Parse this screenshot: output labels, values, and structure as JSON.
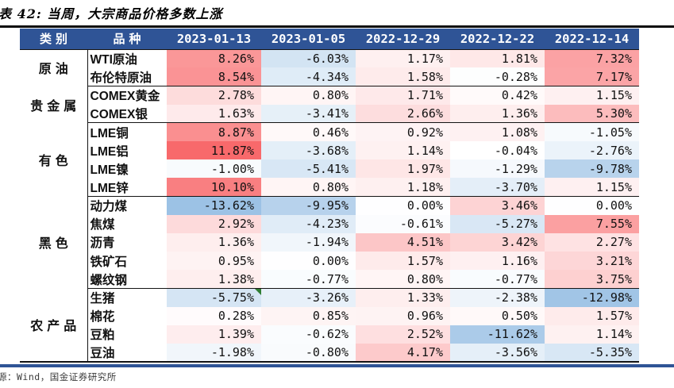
{
  "title": "表 42: 当周，大宗商品价格多数上涨",
  "chart_data": {
    "type": "heatmap",
    "title": "表 42: 当周，大宗商品价格多数上涨",
    "col_headers": [
      "类别",
      "品种",
      "2023-01-13",
      "2023-01-05",
      "2022-12-29",
      "2022-12-22",
      "2022-12-14"
    ],
    "date_columns": [
      "2023-01-13",
      "2023-01-05",
      "2022-12-29",
      "2022-12-22",
      "2022-12-14"
    ],
    "value_format": "percent_2dp",
    "groups": [
      {
        "category": "原油",
        "rows": [
          {
            "name": "WTI原油",
            "values": [
              8.26,
              -6.03,
              1.17,
              1.81,
              7.32
            ]
          },
          {
            "name": "布伦特原油",
            "values": [
              8.54,
              -4.34,
              1.58,
              -0.28,
              7.17
            ]
          }
        ]
      },
      {
        "category": "贵金属",
        "rows": [
          {
            "name": "COMEX黄金",
            "values": [
              2.78,
              0.8,
              1.71,
              0.42,
              1.15
            ]
          },
          {
            "name": "COMEX银",
            "values": [
              1.63,
              -3.41,
              2.66,
              1.36,
              5.3
            ]
          }
        ]
      },
      {
        "category": "有色",
        "rows": [
          {
            "name": "LME铜",
            "values": [
              8.87,
              0.46,
              0.92,
              1.08,
              -1.05
            ]
          },
          {
            "name": "LME铝",
            "values": [
              11.87,
              -3.68,
              1.14,
              -0.04,
              -2.76
            ]
          },
          {
            "name": "LME镍",
            "values": [
              -1.0,
              -5.41,
              1.97,
              -1.29,
              -9.78
            ]
          },
          {
            "name": "LME锌",
            "values": [
              10.1,
              0.8,
              1.18,
              -3.7,
              1.15
            ]
          }
        ]
      },
      {
        "category": "黑色",
        "rows": [
          {
            "name": "动力煤",
            "values": [
              -13.62,
              -9.95,
              0.0,
              3.46,
              0.0
            ]
          },
          {
            "name": "焦煤",
            "values": [
              2.92,
              -4.23,
              -0.61,
              -5.27,
              7.55
            ]
          },
          {
            "name": "沥青",
            "values": [
              1.36,
              -1.94,
              4.51,
              3.42,
              2.27
            ]
          },
          {
            "name": "铁矿石",
            "values": [
              0.95,
              0.0,
              1.57,
              1.16,
              3.21
            ]
          },
          {
            "name": "螺纹钢",
            "values": [
              1.38,
              -0.77,
              0.8,
              -0.77,
              3.75
            ]
          }
        ]
      },
      {
        "category": "农产品",
        "rows": [
          {
            "name": "生猪",
            "values": [
              -5.75,
              -3.26,
              1.33,
              -2.38,
              -12.98
            ]
          },
          {
            "name": "棉花",
            "values": [
              0.28,
              0.85,
              0.96,
              0.5,
              1.57
            ]
          },
          {
            "name": "豆粕",
            "values": [
              1.39,
              -0.62,
              2.52,
              -11.62,
              1.14
            ]
          },
          {
            "name": "豆油",
            "values": [
              -1.98,
              -0.8,
              4.17,
              -3.56,
              -5.35
            ]
          }
        ]
      }
    ],
    "color_scale": {
      "positive_color": "#F8696B",
      "negative_color": "#9CC2E5",
      "neutral_color": "#FEFEFF",
      "positive_max": 11.87,
      "negative_max": 13.62
    },
    "corner_marker": {
      "group_index": 4,
      "row_index": 0,
      "col_index": 0,
      "color": "#2E7D32"
    }
  },
  "colors": {
    "header_bg": "#2F5496",
    "header_text": "#FFFFFF",
    "grid_line": "#141414",
    "bottom_bar": "#2F5496"
  },
  "footer": {
    "source": "源：Wind，国金证券研究所"
  }
}
